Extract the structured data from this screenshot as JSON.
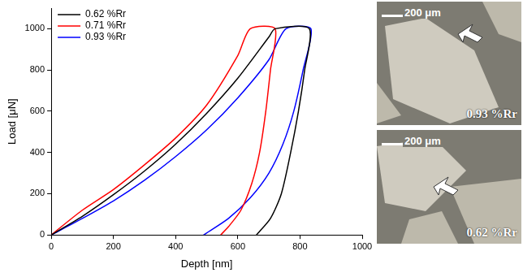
{
  "chart_data": {
    "type": "line",
    "xlabel": "Depth [nm]",
    "ylabel": "Load [μN]",
    "xlim": [
      0,
      1000
    ],
    "xticks": [
      0,
      200,
      400,
      600,
      800,
      1000
    ],
    "ylim": [
      0,
      1100
    ],
    "yticks": [
      0,
      200,
      400,
      600,
      800,
      1000
    ],
    "grid": false,
    "legend": "upper left",
    "series": [
      {
        "name": "0.62 %Rr",
        "color": "#000000",
        "x": [
          0,
          100,
          200,
          300,
          400,
          500,
          600,
          700,
          720,
          830,
          815,
          795,
          770,
          740,
          705,
          660
        ],
        "values": [
          0,
          90,
          195,
          310,
          440,
          590,
          760,
          960,
          1000,
          1000,
          800,
          600,
          400,
          200,
          80,
          0
        ]
      },
      {
        "name": "0.71 %Rr",
        "color": "#ff0000",
        "x": [
          0,
          100,
          200,
          300,
          400,
          500,
          600,
          640,
          720,
          705,
          690,
          670,
          645,
          610,
          570,
          545
        ],
        "values": [
          0,
          120,
          220,
          340,
          470,
          630,
          870,
          1000,
          1000,
          800,
          600,
          400,
          250,
          120,
          40,
          0
        ]
      },
      {
        "name": "0.93 %Rr",
        "color": "#0000ff",
        "x": [
          0,
          100,
          200,
          300,
          400,
          500,
          600,
          700,
          755,
          835,
          810,
          780,
          745,
          700,
          640,
          570,
          490
        ],
        "values": [
          0,
          80,
          165,
          265,
          380,
          510,
          665,
          850,
          1000,
          1000,
          800,
          600,
          440,
          300,
          180,
          80,
          0
        ]
      }
    ]
  },
  "micrographs": [
    {
      "scale_bar": "200 μm",
      "label": "0.93 %Rr"
    },
    {
      "scale_bar": "200 μm",
      "label": "0.62 %Rr"
    }
  ]
}
